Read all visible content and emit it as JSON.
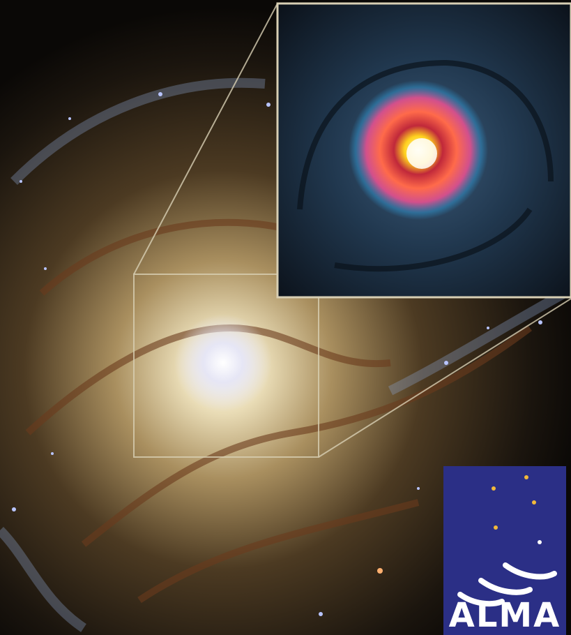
{
  "logo": {
    "text": "ALMA"
  }
}
